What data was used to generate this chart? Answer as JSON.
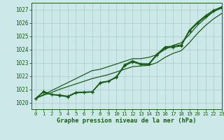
{
  "xlabel": "Graphe pression niveau de la mer (hPa)",
  "xlim": [
    -0.5,
    23
  ],
  "ylim": [
    1019.5,
    1027.5
  ],
  "yticks": [
    1020,
    1021,
    1022,
    1023,
    1024,
    1025,
    1026,
    1027
  ],
  "xticks": [
    0,
    1,
    2,
    3,
    4,
    5,
    6,
    7,
    8,
    9,
    10,
    11,
    12,
    13,
    14,
    15,
    16,
    17,
    18,
    19,
    20,
    21,
    22,
    23
  ],
  "bg_color": "#cde8e8",
  "grid_color": "#a8cccc",
  "line_color": "#1a5c1a",
  "line1": [
    1020.3,
    1020.8,
    1020.6,
    1020.55,
    1020.45,
    1020.75,
    1020.78,
    1020.8,
    1021.5,
    1021.6,
    1021.9,
    1022.8,
    1023.1,
    1022.9,
    1022.9,
    1023.6,
    1024.15,
    1024.2,
    1024.3,
    1025.4,
    1026.0,
    1026.5,
    1026.9,
    1027.15
  ],
  "line2": [
    1020.3,
    1020.85,
    1020.62,
    1020.58,
    1020.48,
    1020.78,
    1020.8,
    1020.82,
    1021.52,
    1021.62,
    1021.95,
    1022.85,
    1023.15,
    1022.92,
    1022.92,
    1023.65,
    1024.2,
    1024.25,
    1024.35,
    1025.45,
    1026.05,
    1026.55,
    1026.95,
    1027.2
  ],
  "line3": [
    1020.3,
    1020.78,
    1020.58,
    1020.52,
    1020.42,
    1020.72,
    1020.75,
    1020.78,
    1021.45,
    1021.58,
    1021.88,
    1022.75,
    1023.05,
    1022.85,
    1022.85,
    1023.55,
    1024.1,
    1024.15,
    1024.25,
    1025.35,
    1025.95,
    1026.45,
    1026.85,
    1027.1
  ],
  "trend_upper": [
    1020.3,
    1020.6,
    1020.9,
    1021.2,
    1021.5,
    1021.8,
    1022.1,
    1022.4,
    1022.5,
    1022.7,
    1022.9,
    1023.1,
    1023.3,
    1023.3,
    1023.4,
    1023.6,
    1024.0,
    1024.3,
    1024.5,
    1025.1,
    1025.8,
    1026.35,
    1026.85,
    1027.2
  ],
  "trend_lower": [
    1020.3,
    1020.55,
    1020.75,
    1021.0,
    1021.2,
    1021.4,
    1021.6,
    1021.8,
    1021.95,
    1022.1,
    1022.3,
    1022.5,
    1022.7,
    1022.75,
    1022.8,
    1023.0,
    1023.4,
    1023.7,
    1023.9,
    1024.5,
    1025.2,
    1025.8,
    1026.3,
    1026.7
  ],
  "marker": "+"
}
